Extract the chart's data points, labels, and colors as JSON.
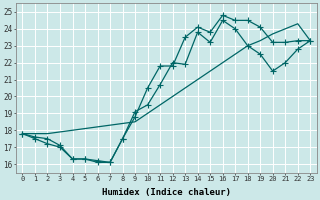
{
  "title": "",
  "xlabel": "Humidex (Indice chaleur)",
  "bg_color": "#cce8e8",
  "grid_color": "#ffffff",
  "line_color": "#006666",
  "xlim": [
    -0.5,
    23.5
  ],
  "ylim": [
    15.5,
    25.5
  ],
  "xticks": [
    0,
    1,
    2,
    3,
    4,
    5,
    6,
    7,
    8,
    9,
    10,
    11,
    12,
    13,
    14,
    15,
    16,
    17,
    18,
    19,
    20,
    21,
    22,
    23
  ],
  "yticks": [
    16,
    17,
    18,
    19,
    20,
    21,
    22,
    23,
    24,
    25
  ],
  "line1_x": [
    0,
    1,
    2,
    3,
    4,
    5,
    6,
    7,
    8,
    9,
    10,
    11,
    12,
    13,
    14,
    15,
    16,
    17,
    18,
    19,
    20,
    21,
    22,
    23
  ],
  "line1_y": [
    17.8,
    17.6,
    17.5,
    17.1,
    16.3,
    16.3,
    16.2,
    16.1,
    17.5,
    18.8,
    20.5,
    21.8,
    21.8,
    23.5,
    24.1,
    23.8,
    24.8,
    24.5,
    24.5,
    24.1,
    23.2,
    23.2,
    23.3,
    23.3
  ],
  "line2_x": [
    0,
    1,
    2,
    3,
    4,
    5,
    6,
    7,
    8,
    9,
    10,
    11,
    12,
    13,
    14,
    15,
    16,
    17,
    18,
    19,
    20,
    21,
    22,
    23
  ],
  "line2_y": [
    17.8,
    17.5,
    17.2,
    17.0,
    16.3,
    16.3,
    16.1,
    16.1,
    17.5,
    19.1,
    19.5,
    20.7,
    22.0,
    21.9,
    23.8,
    23.2,
    24.5,
    24.0,
    23.0,
    22.5,
    21.5,
    22.0,
    22.8,
    23.3
  ],
  "line3_x": [
    0,
    2,
    9,
    10,
    11,
    12,
    13,
    14,
    15,
    16,
    17,
    18,
    19,
    20,
    21,
    22,
    23
  ],
  "line3_y": [
    17.8,
    17.8,
    18.5,
    19.0,
    19.5,
    20.0,
    20.5,
    21.0,
    21.5,
    22.0,
    22.5,
    23.0,
    23.3,
    23.7,
    24.0,
    24.3,
    23.3
  ],
  "markersize": 2.5,
  "linewidth": 0.9
}
